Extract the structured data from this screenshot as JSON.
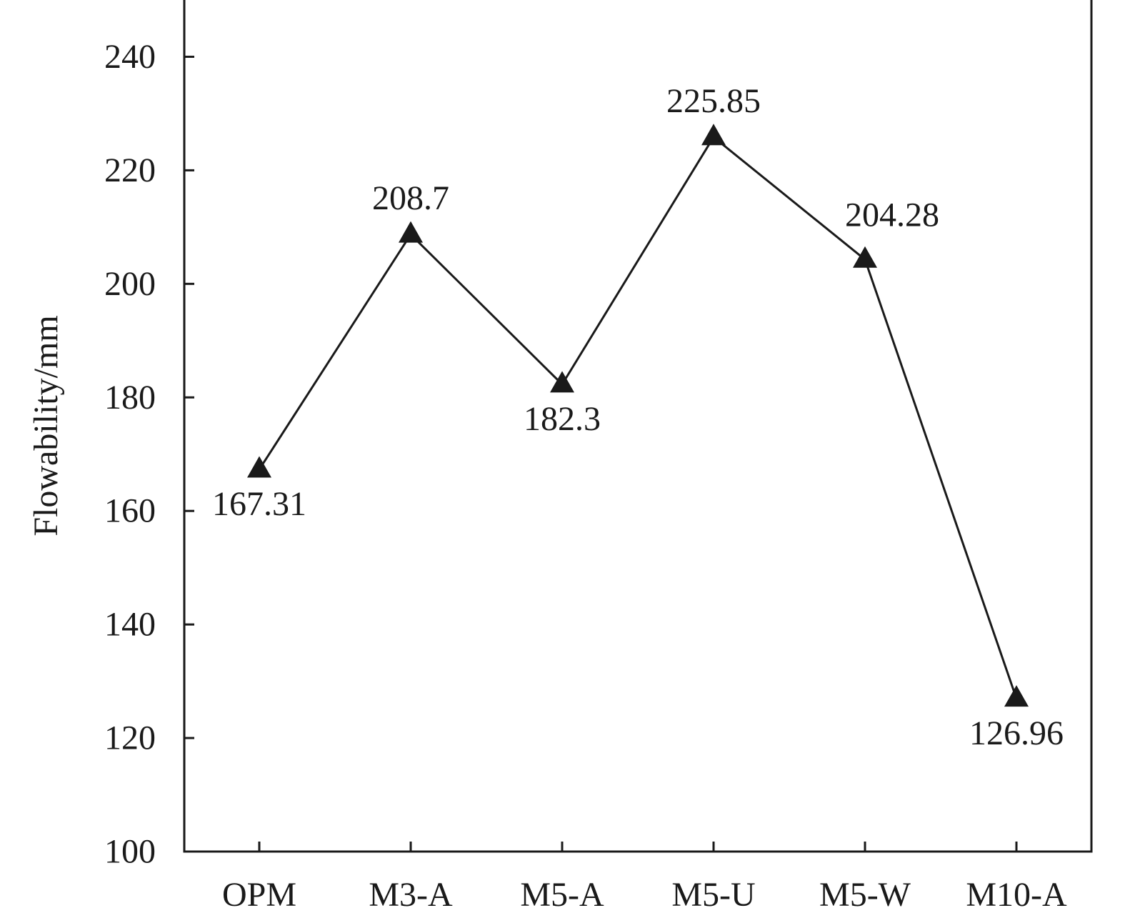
{
  "chart_data": {
    "type": "line",
    "title": "",
    "xlabel": "",
    "ylabel": "Flowability/mm",
    "ylim": [
      100,
      250
    ],
    "yticks": [
      100,
      120,
      140,
      160,
      180,
      200,
      220,
      240
    ],
    "grid": false,
    "categories": [
      "OPM",
      "M3-A",
      "M5-A",
      "M5-U",
      "M5-W",
      "M10-A"
    ],
    "series": [
      {
        "marker": "triangle",
        "color": "#1a1a1a",
        "values": [
          167.31,
          208.7,
          182.3,
          225.85,
          204.28,
          126.96
        ],
        "data_labels": [
          "167.31",
          "208.7",
          "182.3",
          "225.85",
          "204.28",
          "126.96"
        ],
        "data_label_positions": [
          "below",
          "above",
          "below",
          "above",
          "above-right",
          "below"
        ]
      }
    ]
  }
}
